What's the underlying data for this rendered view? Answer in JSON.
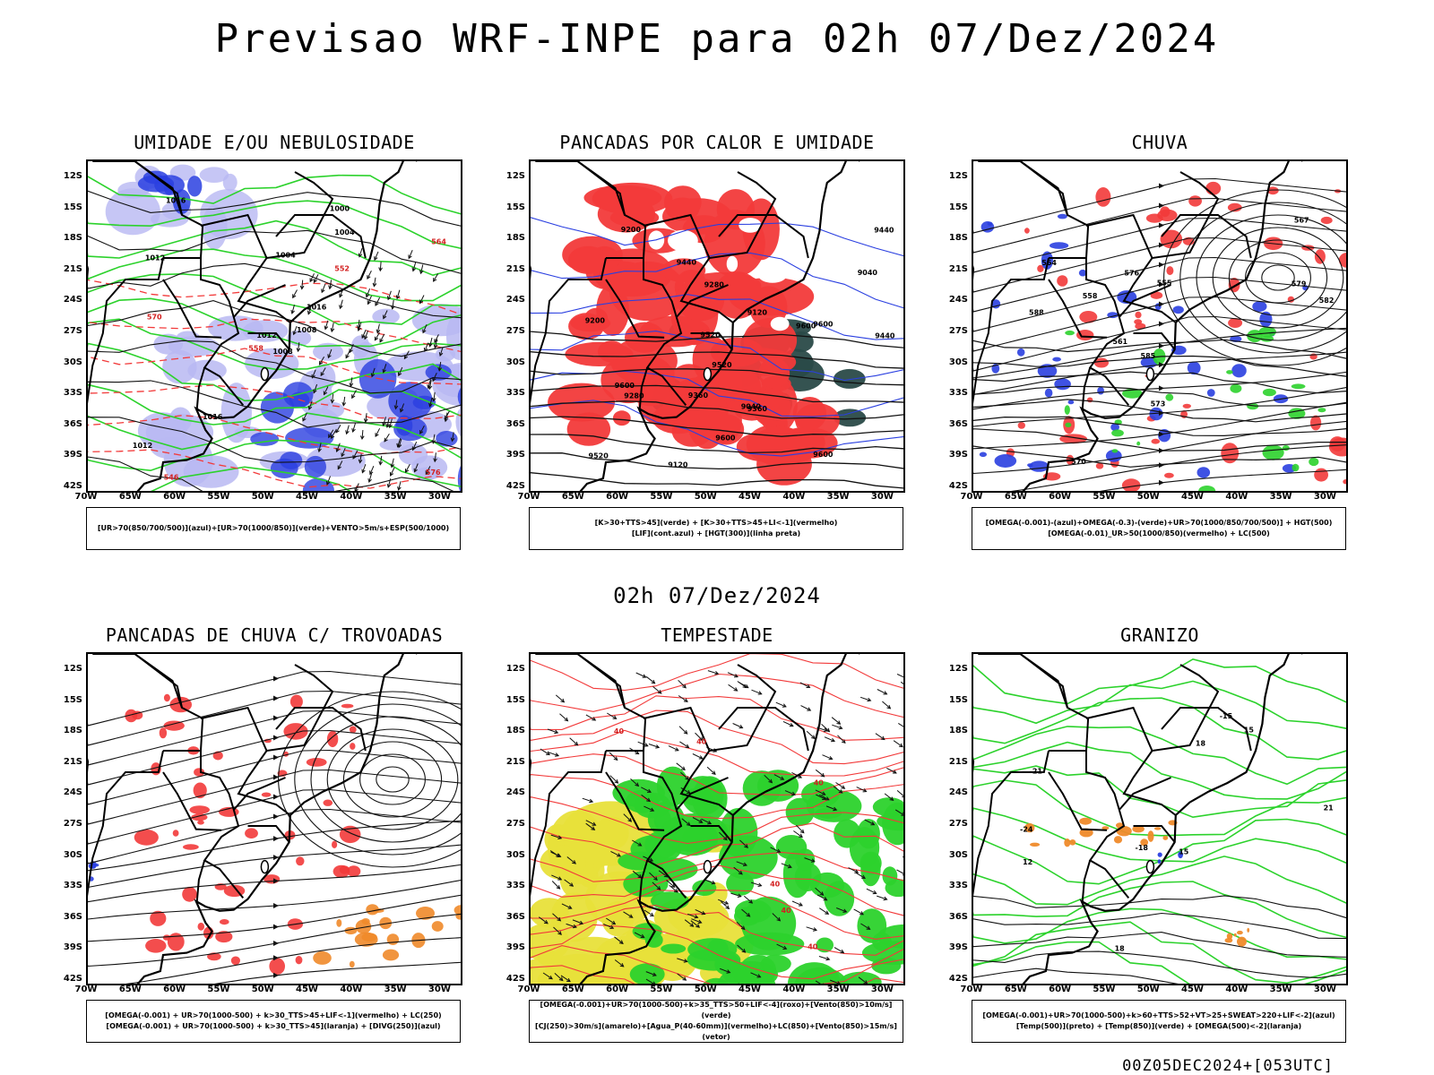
{
  "title": "Previsao WRF-INPE  para 02h 07/Dez/2024",
  "mid_title": "02h 07/Dez/2024",
  "footer": "00Z05DEC2024+[053UTC]",
  "axes": {
    "lat_ticks": [
      "12S",
      "15S",
      "18S",
      "21S",
      "24S",
      "27S",
      "30S",
      "33S",
      "36S",
      "39S",
      "42S"
    ],
    "lon_ticks": [
      "70W",
      "65W",
      "60W",
      "55W",
      "50W",
      "45W",
      "40W",
      "35W",
      "30W"
    ]
  },
  "colors": {
    "red": "#f23a3a",
    "green": "#2cd22c",
    "blue": "#2a3fe0",
    "lavender": "#b8b8f2",
    "yellow": "#e8e03a",
    "orange": "#ef8a2a",
    "darkteal": "#2a4a48"
  },
  "panels": [
    {
      "id": "umidade",
      "title": "UMIDADE E/OU NEBULOSIDADE",
      "legend": [
        "[UR>70(850/700/500)](azul)+[UR>70(1000/850)](verde)+VENTO>5m/s+ESP(500/1000)"
      ],
      "contour_labels": [
        "1008",
        "1012",
        "1012",
        "1012",
        "1016",
        "1016",
        "1000",
        "1004",
        "1004",
        "1008",
        "1016",
        "576",
        "570",
        "564",
        "558",
        "552",
        "546"
      ]
    },
    {
      "id": "pancadas-calor",
      "title": "PANCADAS POR CALOR E UMIDADE",
      "legend": [
        "[K>30+TTS>45](verde) + [K>30+TTS>45+LI<-1](vermelho)",
        "[LIF](cont.azul) + [HGT(300)](linha preta)"
      ],
      "contour_labels": [
        "9600",
        "9600",
        "9600",
        "9520",
        "9600",
        "9440",
        "9520",
        "9600",
        "9360",
        "9440",
        "9280",
        "9200",
        "9120",
        "9040",
        "9520",
        "9440",
        "9360",
        "9280",
        "9200",
        "9120",
        "9040"
      ]
    },
    {
      "id": "chuva",
      "title": "CHUVA",
      "legend": [
        "[OMEGA(-0.001)-(azul)+OMEGA(-0.3)-(verde)+UR>70(1000/850/700/500)] + HGT(500)",
        "[OMEGA(-0.01)_UR>50(1000/850)(vermelho) + LC(500)"
      ],
      "contour_labels": [
        "582",
        "585",
        "588",
        "579",
        "576",
        "573",
        "570",
        "567",
        "564",
        "561",
        "558",
        "555"
      ]
    },
    {
      "id": "trovoadas",
      "title": "PANCADAS DE CHUVA C/ TROVOADAS",
      "legend": [
        "[OMEGA(-0.001) + UR>70(1000-500) + k>30_TTS>45+LIF<-1](vermelho) + LC(250)",
        "[OMEGA(-0.001) + UR>70(1000-500) + k>30_TTS>45](laranja) + [DIVG(250)](azul)"
      ],
      "contour_labels": []
    },
    {
      "id": "tempestade",
      "title": "TEMPESTADE",
      "legend": [
        "[OMEGA(-0.001)+UR>70(1000-500)+k>35_TTS>50+LIF<-4](roxo)+[Vento(850)>10m/s](verde)",
        "[CJ(250)>30m/s](amarelo)+[Agua_P(40-60mm)](vermelho)+LC(850)+[Vento(850)>15m/s](vetor)"
      ],
      "contour_labels": [
        "40",
        "40",
        "40",
        "40",
        "40",
        "40"
      ]
    },
    {
      "id": "granizo",
      "title": "GRANIZO",
      "legend": [
        "[OMEGA(-0.001)+UR>70(1000-500)+k>60+TTS>52+VT>25+SWEAT>220+LIF<-2](azul)",
        "[Temp(500)](preto) + [Temp(850)](verde) + [OMEGA(500)<-2](laranja)"
      ],
      "contour_labels": [
        "-15",
        "-18",
        "-21",
        "-24",
        "12",
        "15",
        "18",
        "21",
        "18",
        "15"
      ]
    }
  ]
}
